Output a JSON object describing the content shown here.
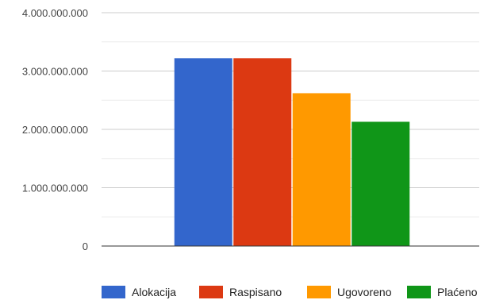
{
  "chart_data": {
    "type": "bar",
    "title": "",
    "xlabel": "",
    "ylabel": "",
    "categories": [
      ""
    ],
    "series": [
      {
        "name": "Alokacija",
        "values": [
          3220000000
        ],
        "color": "#3366cc"
      },
      {
        "name": "Raspisano",
        "values": [
          3220000000
        ],
        "color": "#dc3912"
      },
      {
        "name": "Ugovoreno",
        "values": [
          2620000000
        ],
        "color": "#ff9900"
      },
      {
        "name": "Plaćeno",
        "values": [
          2130000000
        ],
        "color": "#109618"
      }
    ],
    "ylim": [
      0,
      4000000000
    ],
    "y_ticks": [
      {
        "value": 0,
        "label": "0"
      },
      {
        "value": 1000000000,
        "label": "1.000.000.000"
      },
      {
        "value": 2000000000,
        "label": "2.000.000.000"
      },
      {
        "value": 3000000000,
        "label": "3.000.000.000"
      },
      {
        "value": 4000000000,
        "label": "4.000.000.000"
      }
    ],
    "grid": true,
    "minor_grid": true,
    "legend_position": "bottom"
  }
}
